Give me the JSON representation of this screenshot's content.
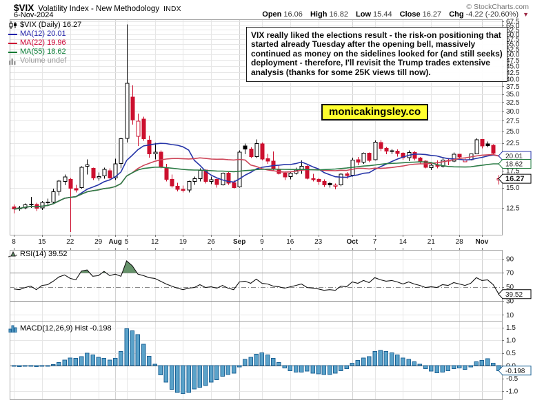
{
  "header": {
    "symbol": "$VIX",
    "title": "Volatility Index - New Methodology",
    "exchange": "INDX",
    "date": "6-Nov-2024",
    "copyright": "© StockCharts.com",
    "quote": {
      "items": [
        {
          "label": "Open",
          "value": "16.06"
        },
        {
          "label": "High",
          "value": "16.82"
        },
        {
          "label": "Low",
          "value": "15.44"
        },
        {
          "label": "Close",
          "value": "16.27"
        },
        {
          "label": "Chg",
          "value": "-4.22 (-20.60%)"
        }
      ],
      "direction_marker": "▼"
    }
  },
  "legend": {
    "items": [
      {
        "icon": "candlestick-icon",
        "label": "$VIX (Daily) 16.27",
        "color": "#000000"
      },
      {
        "icon": "line-swatch",
        "label": "MA(12) 20.01",
        "color": "#2222aa"
      },
      {
        "icon": "line-swatch",
        "label": "MA(22) 19.96",
        "color": "#cc0033"
      },
      {
        "icon": "line-swatch",
        "label": "MA(55) 18.62",
        "color": "#077a33"
      },
      {
        "icon": "volume-bars-icon",
        "label": "Volume undef",
        "color": "#999999"
      }
    ]
  },
  "annotation": {
    "text": "VIX really liked the elections result - the risk-on positioning that started already Tuesday after the opening bell, massively continued as money on the sidelines looked for (and still seeks) deployment - therefore, I'll revisit the Trump trades extensive analysis (thanks for some 25K views till now).",
    "link": "monicakingsley.co"
  },
  "colors": {
    "red": "#cc0f2e",
    "black": "#000000",
    "ma12": "#2635a8",
    "ma22": "#cd4558",
    "ma55": "#2e7d48",
    "macd_fill": "#5aa2c9",
    "macd_stroke": "#1d6396",
    "rsi_fill": "#66936b",
    "grid": "#e6e6e6",
    "grid_dark": "#d2d2d2",
    "border": "#a6a6a6"
  },
  "chart_data": [
    {
      "type": "candlestick",
      "title": "$VIX (Daily) 16.27",
      "scale": "log",
      "last_close": 16.27,
      "yticks": [
        12.5,
        15.0,
        17.5,
        20.0,
        22.5,
        25.0,
        27.5,
        30.0,
        32.5,
        35.0,
        37.5,
        40.0,
        42.5,
        45.0,
        47.5,
        50.0,
        52.5,
        55.0,
        57.5,
        60.0,
        62.5,
        65.0,
        67.5
      ],
      "hidden_ytick_labels": [
        20.0
      ],
      "xticks": [
        [
          0,
          "8",
          0
        ],
        [
          5,
          "15",
          0
        ],
        [
          10,
          "22",
          0
        ],
        [
          15,
          "29",
          0
        ],
        [
          18,
          "Aug",
          1
        ],
        [
          20,
          "5",
          0
        ],
        [
          25,
          "12",
          0
        ],
        [
          30,
          "19",
          0
        ],
        [
          35,
          "26",
          0
        ],
        [
          40,
          "Sep",
          1
        ],
        [
          44,
          "9",
          0
        ],
        [
          49,
          "16",
          0
        ],
        [
          54,
          "23",
          0
        ],
        [
          60,
          "Oct",
          1
        ],
        [
          64,
          "7",
          0
        ],
        [
          69,
          "14",
          0
        ],
        [
          74,
          "21",
          0
        ],
        [
          79,
          "28",
          0
        ],
        [
          83,
          "Nov",
          1
        ]
      ],
      "overlays": [
        {
          "label": "MA(12)",
          "period": 12,
          "last": 20.01,
          "color": "#2635a8"
        },
        {
          "label": "MA(22)",
          "period": 22,
          "last": 19.96,
          "color": "#cd4558"
        },
        {
          "label": "MA(55)",
          "period": 55,
          "last": 18.62,
          "color": "#2e7d48"
        }
      ],
      "price_tags": [
        {
          "value": 20.01,
          "label": "20.01",
          "color": "#2635a8",
          "bold": false
        },
        {
          "value": 18.62,
          "label": "18.62",
          "color": "#1e7a3c",
          "bold": false
        },
        {
          "value": 16.27,
          "label": "16.27",
          "color": "#000000",
          "bold": true
        }
      ],
      "ohlc": [
        [
          12.6,
          12.9,
          11.9,
          12.37
        ],
        [
          12.4,
          12.75,
          12.2,
          12.51
        ],
        [
          12.5,
          13.0,
          12.35,
          12.85
        ],
        [
          12.9,
          13.8,
          12.5,
          12.92
        ],
        [
          12.9,
          13.1,
          12.15,
          12.46
        ],
        [
          12.5,
          13.3,
          12.25,
          13.12
        ],
        [
          13.1,
          13.6,
          12.8,
          13.19
        ],
        [
          13.2,
          14.9,
          13.0,
          14.48
        ],
        [
          14.5,
          16.1,
          14.0,
          15.93
        ],
        [
          15.9,
          16.9,
          15.35,
          16.52
        ],
        [
          16.2,
          16.4,
          10.05,
          14.91
        ],
        [
          14.9,
          15.4,
          14.4,
          14.72
        ],
        [
          15.0,
          18.2,
          14.9,
          18.04
        ],
        [
          18.2,
          19.4,
          16.9,
          18.46
        ],
        [
          17.9,
          18.0,
          16.1,
          16.39
        ],
        [
          16.4,
          17.2,
          16.0,
          16.6
        ],
        [
          16.7,
          18.0,
          16.3,
          17.69
        ],
        [
          17.5,
          17.9,
          16.0,
          16.36
        ],
        [
          16.4,
          19.5,
          16.1,
          18.59
        ],
        [
          18.7,
          23.6,
          17.9,
          23.39
        ],
        [
          23.4,
          65.73,
          22.6,
          38.57
        ],
        [
          34.0,
          37.8,
          26.5,
          27.71
        ],
        [
          23.9,
          29.3,
          21.9,
          27.4
        ],
        [
          27.9,
          28.5,
          22.9,
          23.4
        ],
        [
          23.1,
          24.0,
          19.7,
          20.37
        ],
        [
          20.4,
          22.5,
          19.4,
          20.71
        ],
        [
          20.7,
          21.0,
          17.9,
          18.04
        ],
        [
          18.0,
          18.6,
          15.9,
          16.19
        ],
        [
          16.2,
          16.9,
          15.0,
          15.23
        ],
        [
          15.2,
          15.7,
          14.5,
          14.8
        ],
        [
          14.8,
          15.3,
          14.4,
          14.65
        ],
        [
          14.7,
          16.0,
          14.4,
          15.88
        ],
        [
          15.9,
          16.6,
          15.4,
          16.27
        ],
        [
          16.3,
          17.9,
          15.9,
          17.56
        ],
        [
          17.6,
          17.7,
          15.6,
          15.86
        ],
        [
          15.9,
          16.6,
          15.5,
          16.15
        ],
        [
          16.2,
          16.3,
          15.0,
          15.43
        ],
        [
          15.4,
          17.2,
          15.3,
          17.11
        ],
        [
          17.1,
          17.3,
          15.4,
          15.65
        ],
        [
          15.7,
          16.1,
          14.9,
          15.0
        ],
        [
          15.1,
          21.0,
          15.0,
          20.72
        ],
        [
          21.9,
          22.4,
          20.3,
          21.31
        ],
        [
          21.3,
          21.6,
          19.6,
          19.9
        ],
        [
          19.9,
          23.2,
          19.6,
          22.38
        ],
        [
          22.3,
          22.6,
          19.2,
          19.45
        ],
        [
          19.5,
          20.4,
          18.6,
          19.08
        ],
        [
          19.1,
          20.8,
          17.5,
          17.69
        ],
        [
          17.7,
          18.3,
          16.9,
          17.07
        ],
        [
          17.1,
          17.4,
          16.1,
          16.56
        ],
        [
          16.6,
          17.4,
          16.2,
          17.14
        ],
        [
          17.1,
          18.0,
          16.9,
          17.61
        ],
        [
          17.6,
          19.2,
          17.0,
          18.23
        ],
        [
          18.2,
          18.4,
          16.2,
          16.33
        ],
        [
          16.3,
          17.0,
          15.9,
          16.15
        ],
        [
          16.2,
          16.4,
          15.4,
          15.89
        ],
        [
          15.9,
          16.2,
          15.1,
          15.39
        ],
        [
          15.6,
          15.8,
          15.0,
          15.41
        ],
        [
          15.2,
          15.6,
          14.8,
          15.37
        ],
        [
          15.4,
          17.1,
          15.2,
          16.96
        ],
        [
          17.0,
          17.3,
          16.3,
          16.73
        ],
        [
          16.8,
          19.7,
          16.6,
          19.26
        ],
        [
          19.3,
          19.8,
          18.4,
          18.9
        ],
        [
          18.9,
          20.6,
          18.6,
          20.49
        ],
        [
          20.5,
          20.6,
          18.9,
          19.21
        ],
        [
          19.3,
          23.0,
          19.2,
          22.64
        ],
        [
          22.6,
          23.1,
          20.9,
          21.42
        ],
        [
          21.4,
          21.7,
          20.3,
          20.86
        ],
        [
          20.9,
          21.3,
          20.3,
          20.93
        ],
        [
          20.9,
          21.2,
          19.9,
          20.46
        ],
        [
          20.5,
          20.7,
          19.3,
          19.7
        ],
        [
          19.7,
          21.0,
          19.1,
          20.64
        ],
        [
          20.6,
          20.9,
          19.2,
          19.58
        ],
        [
          19.6,
          19.8,
          18.6,
          19.11
        ],
        [
          19.1,
          19.2,
          17.9,
          18.03
        ],
        [
          18.0,
          18.8,
          17.6,
          18.37
        ],
        [
          18.4,
          19.2,
          17.9,
          18.2
        ],
        [
          18.2,
          19.6,
          18.0,
          19.24
        ],
        [
          19.2,
          19.6,
          18.4,
          19.08
        ],
        [
          19.1,
          20.6,
          18.9,
          20.33
        ],
        [
          20.3,
          20.4,
          19.3,
          19.8
        ],
        [
          19.0,
          19.6,
          18.9,
          19.34
        ],
        [
          19.3,
          20.4,
          19.2,
          20.35
        ],
        [
          20.4,
          23.4,
          20.3,
          23.16
        ],
        [
          23.2,
          23.3,
          21.4,
          21.88
        ],
        [
          22.3,
          22.8,
          21.6,
          21.98
        ],
        [
          22.0,
          22.2,
          20.1,
          20.49
        ],
        [
          16.06,
          16.82,
          15.44,
          16.27
        ]
      ]
    },
    {
      "type": "line",
      "legend": "RSI(14) 39.52",
      "name": "RSI(14)",
      "last": 39.52,
      "yticks": [
        90,
        70,
        50,
        30,
        10
      ],
      "overbought": 70,
      "midline": 50,
      "oversold": 30,
      "values": [
        47,
        46,
        49,
        51,
        46,
        52,
        53,
        58,
        64,
        67,
        62,
        60,
        72.5,
        74,
        65,
        66,
        72,
        66,
        68,
        65,
        87,
        80,
        68,
        66,
        63,
        62,
        58,
        54,
        51,
        48,
        46,
        48,
        49,
        53,
        49,
        50,
        48,
        52,
        48,
        46,
        57,
        58,
        55,
        61,
        55,
        54,
        51,
        50,
        48,
        50,
        52,
        54,
        49,
        48,
        47,
        45,
        46,
        45,
        51,
        50,
        57,
        55,
        59,
        56,
        63,
        60,
        58,
        59,
        57,
        54,
        57,
        54,
        52,
        49,
        50,
        49,
        53,
        52,
        56,
        54,
        52,
        55,
        63,
        59,
        60,
        53,
        39.52
      ]
    },
    {
      "type": "bar",
      "legend": "MACD(12,26,9) Hist -0.198",
      "name": "MACD(12,26,9) Hist",
      "last": -0.198,
      "yticks": [
        1.5,
        1.0,
        0.5,
        0.0,
        -0.5,
        -1.0
      ],
      "values": [
        -0.03,
        -0.04,
        -0.03,
        -0.02,
        -0.04,
        -0.02,
        0.0,
        0.04,
        0.12,
        0.22,
        0.3,
        0.28,
        0.35,
        0.48,
        0.42,
        0.33,
        0.28,
        0.22,
        0.28,
        0.55,
        1.45,
        1.37,
        1.22,
        0.84,
        0.36,
        0.05,
        -0.36,
        -0.65,
        -0.93,
        -1.06,
        -1.1,
        -1.05,
        -0.92,
        -0.85,
        -0.78,
        -0.65,
        -0.55,
        -0.42,
        -0.35,
        -0.3,
        -0.05,
        0.25,
        0.32,
        0.45,
        0.5,
        0.42,
        0.28,
        0.12,
        -0.1,
        -0.2,
        -0.25,
        -0.25,
        -0.22,
        -0.3,
        -0.33,
        -0.35,
        -0.35,
        -0.3,
        -0.2,
        -0.12,
        0.1,
        0.2,
        0.3,
        0.35,
        0.55,
        0.6,
        0.55,
        0.5,
        0.42,
        0.3,
        0.25,
        0.15,
        0.05,
        -0.12,
        -0.22,
        -0.28,
        -0.25,
        -0.2,
        -0.12,
        -0.1,
        -0.15,
        -0.05,
        0.15,
        0.2,
        0.27,
        0.1,
        -0.198
      ]
    }
  ]
}
